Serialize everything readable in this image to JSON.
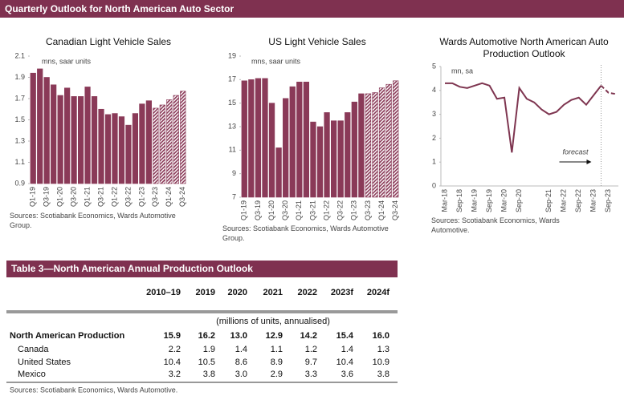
{
  "header": {
    "title": "Quarterly Outlook for North American Auto Sector"
  },
  "chart_data": [
    {
      "type": "bar",
      "title": "Canadian Light Vehicle Sales",
      "unit_label": "mns, saar units",
      "categories": [
        "Q1-19",
        null,
        "Q3-19",
        null,
        "Q1-20",
        null,
        "Q3-20",
        null,
        "Q1-21",
        null,
        "Q3-21",
        null,
        "Q1-22",
        null,
        "Q3-22",
        null,
        "Q1-23",
        null,
        "Q3-23",
        null,
        "Q1-24",
        null,
        "Q3-24"
      ],
      "series": [
        {
          "color": "#8a3a58",
          "values": [
            1.94,
            1.98,
            1.9,
            1.83,
            1.73,
            1.8,
            1.72,
            1.72,
            1.81,
            1.72,
            1.6,
            1.55,
            1.56,
            1.53,
            1.45,
            1.56,
            1.65,
            1.68,
            null,
            null,
            null,
            null,
            null
          ]
        },
        {
          "color": "#8a3a58",
          "pattern": "hatched",
          "values": [
            null,
            null,
            null,
            null,
            null,
            null,
            null,
            null,
            null,
            null,
            null,
            null,
            null,
            null,
            null,
            null,
            null,
            null,
            1.61,
            1.64,
            1.69,
            1.73,
            1.77
          ]
        }
      ],
      "ylim": [
        0.9,
        2.1
      ],
      "yticks": [
        0.9,
        1.1,
        1.3,
        1.5,
        1.7,
        1.9,
        2.1
      ],
      "grid": false,
      "source": "Sources: Scotiabank Economics, Wards Automotive Group."
    },
    {
      "type": "bar",
      "title": "US Light Vehicle Sales",
      "unit_label": "mns, saar units",
      "categories": [
        "Q1-19",
        null,
        "Q3-19",
        null,
        "Q1-20",
        null,
        "Q3-20",
        null,
        "Q1-21",
        null,
        "Q3-21",
        null,
        "Q1-22",
        null,
        "Q3-22",
        null,
        "Q1-23",
        null,
        "Q3-23",
        null,
        "Q1-24",
        null,
        "Q3-24"
      ],
      "series": [
        {
          "color": "#8a3a58",
          "values": [
            16.9,
            17.0,
            17.1,
            17.1,
            15.0,
            11.2,
            15.4,
            16.4,
            16.8,
            16.8,
            13.4,
            13.0,
            14.2,
            13.5,
            13.5,
            14.2,
            15.1,
            15.8,
            null,
            null,
            null,
            null,
            null
          ]
        },
        {
          "color": "#8a3a58",
          "pattern": "hatched",
          "values": [
            null,
            null,
            null,
            null,
            null,
            null,
            null,
            null,
            null,
            null,
            null,
            null,
            null,
            null,
            null,
            null,
            null,
            null,
            15.8,
            15.9,
            16.3,
            16.6,
            16.9
          ]
        }
      ],
      "ylim": [
        7,
        19
      ],
      "yticks": [
        7,
        9,
        11,
        13,
        15,
        17,
        19
      ],
      "grid": false,
      "source": "Sources: Scotiabank Economics, Wards Automotive Group."
    },
    {
      "type": "line",
      "title": "Wards Automotive North American Auto Production Outlook",
      "unit_label": "mn, sa",
      "annotation": "forecast",
      "categories": [
        "Mar-18",
        null,
        "Sep-18",
        null,
        "Mar-19",
        null,
        "Sep-19",
        null,
        "Mar-20",
        null,
        "Sep-20",
        null,
        null,
        null,
        "Sep-21",
        null,
        "Mar-22",
        null,
        "Sep-22",
        null,
        "Mar-23",
        null,
        "Sep-23",
        null
      ],
      "series": [
        {
          "color": "#7e3550",
          "values": [
            4.3,
            4.3,
            4.15,
            4.1,
            4.2,
            4.3,
            4.2,
            3.65,
            3.7,
            1.4,
            4.1,
            3.65,
            3.5,
            3.2,
            3.0,
            3.1,
            3.4,
            3.6,
            3.7,
            3.4,
            3.8,
            4.2,
            null,
            null
          ]
        },
        {
          "color": "#7e3550",
          "dash": true,
          "values": [
            null,
            null,
            null,
            null,
            null,
            null,
            null,
            null,
            null,
            null,
            null,
            null,
            null,
            null,
            null,
            null,
            null,
            null,
            null,
            null,
            null,
            4.2,
            3.9,
            3.85
          ]
        }
      ],
      "ylim": [
        0,
        5
      ],
      "yticks": [
        0,
        1,
        2,
        3,
        4,
        5
      ],
      "grid": false,
      "source": "Sources: Scotiabank Economics, Wards Automotive."
    }
  ],
  "table": {
    "title": "Table 3—North American Annual Production Outlook",
    "columns": [
      "2010–19",
      "2019",
      "2020",
      "2021",
      "2022",
      "2023f",
      "2024f"
    ],
    "unit_note": "(millions of units, annualised)",
    "rows": [
      {
        "label": "North American Production",
        "bold": true,
        "cells": [
          "15.9",
          "16.2",
          "13.0",
          "12.9",
          "14.2",
          "15.4",
          "16.0"
        ]
      },
      {
        "label": "Canada",
        "cells": [
          "2.2",
          "1.9",
          "1.4",
          "1.1",
          "1.2",
          "1.4",
          "1.3"
        ]
      },
      {
        "label": "United States",
        "cells": [
          "10.4",
          "10.5",
          "8.6",
          "8.9",
          "9.7",
          "10.4",
          "10.9"
        ]
      },
      {
        "label": "Mexico",
        "cells": [
          "3.2",
          "3.8",
          "3.0",
          "2.9",
          "3.3",
          "3.6",
          "3.8"
        ]
      }
    ],
    "source": "Sources: Scotiabank Economics, Wards Automotive."
  }
}
